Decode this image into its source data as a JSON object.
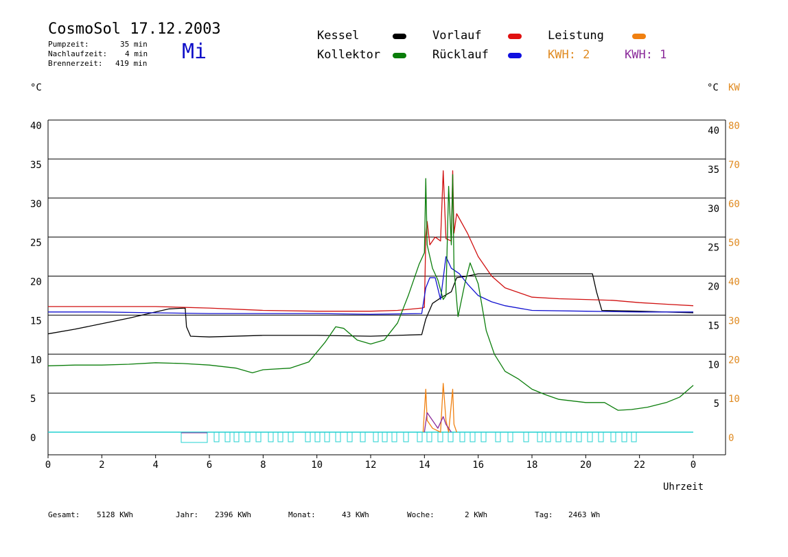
{
  "header": {
    "title": "CosmoSol 17.12.2003",
    "day": "Mi",
    "stats": [
      {
        "label": "Pumpzeit:",
        "value": "35 min"
      },
      {
        "label": "Nachlaufzeit:",
        "value": "4 min"
      },
      {
        "label": "Brennerzeit:",
        "value": "419 min"
      }
    ]
  },
  "legend": [
    {
      "label": "Kessel",
      "color": "#000000"
    },
    {
      "label": "Kollektor",
      "color": "#0a7d0a"
    },
    {
      "label": "Vorlauf",
      "color": "#e01010"
    },
    {
      "label": "Rücklauf",
      "color": "#1010e0"
    },
    {
      "label": "Leistung",
      "color": "#f08010"
    }
  ],
  "kwh": [
    {
      "text": "KWH: 2",
      "color": "#e08a20"
    },
    {
      "text": "KWH: 1",
      "color": "#8a2a9a"
    }
  ],
  "axes": {
    "left_unit": "°C",
    "right_unit": "°C",
    "right_unit2": "KW",
    "left_ticks": [
      "0",
      "5",
      "10",
      "15",
      "20",
      "25",
      "30",
      "35",
      "40"
    ],
    "right_ticks": [
      "5",
      "10",
      "15",
      "20",
      "25",
      "30",
      "35",
      "40"
    ],
    "kw_ticks": [
      "0",
      "10",
      "20",
      "30",
      "40",
      "50",
      "60",
      "70",
      "80"
    ],
    "x_ticks": [
      "0",
      "2",
      "4",
      "6",
      "8",
      "10",
      "12",
      "14",
      "16",
      "18",
      "20",
      "22",
      "0"
    ],
    "xlabel": "Uhrzeit"
  },
  "footer": [
    {
      "label": "Gesamt:",
      "value": "5128 KWh"
    },
    {
      "label": "Jahr:",
      "value": "2396 KWh"
    },
    {
      "label": "Monat:",
      "value": "43 KWh"
    },
    {
      "label": "Woche:",
      "value": "2 KWh"
    },
    {
      "label": "Tag:",
      "value": "2463 Wh"
    }
  ],
  "chart_data": {
    "type": "line",
    "xlabel": "Uhrzeit",
    "ylabel": "°C",
    "y2label": "KW",
    "xlim": [
      0,
      24
    ],
    "ylim": [
      0,
      40
    ],
    "y2lim": [
      0,
      80
    ],
    "grid": true,
    "series": [
      {
        "name": "Kessel",
        "color": "#000000",
        "points": [
          [
            0,
            12.6
          ],
          [
            1,
            13.2
          ],
          [
            2,
            13.9
          ],
          [
            3,
            14.6
          ],
          [
            4,
            15.4
          ],
          [
            4.5,
            15.8
          ],
          [
            5.1,
            15.9
          ],
          [
            5.15,
            13.5
          ],
          [
            5.3,
            12.3
          ],
          [
            6,
            12.2
          ],
          [
            8,
            12.4
          ],
          [
            10,
            12.4
          ],
          [
            12,
            12.3
          ],
          [
            13,
            12.4
          ],
          [
            13.9,
            12.5
          ],
          [
            14.05,
            14.5
          ],
          [
            14.3,
            16.5
          ],
          [
            14.6,
            17.2
          ],
          [
            14.8,
            17.6
          ],
          [
            15,
            18
          ],
          [
            15.2,
            19.8
          ],
          [
            15.6,
            20
          ],
          [
            16,
            20.3
          ],
          [
            18,
            20.3
          ],
          [
            20,
            20.3
          ],
          [
            20.25,
            20.3
          ],
          [
            20.4,
            18
          ],
          [
            20.6,
            15.6
          ],
          [
            22,
            15.5
          ],
          [
            24,
            15.3
          ]
        ]
      },
      {
        "name": "Vorlauf",
        "color": "#d01010",
        "points": [
          [
            0,
            16.1
          ],
          [
            2,
            16.1
          ],
          [
            4,
            16.1
          ],
          [
            6,
            15.9
          ],
          [
            8,
            15.6
          ],
          [
            10,
            15.5
          ],
          [
            12,
            15.5
          ],
          [
            13,
            15.6
          ],
          [
            13.9,
            15.9
          ],
          [
            14,
            16
          ],
          [
            14.05,
            25
          ],
          [
            14.1,
            27
          ],
          [
            14.2,
            24
          ],
          [
            14.4,
            25
          ],
          [
            14.6,
            24.5
          ],
          [
            14.7,
            33.5
          ],
          [
            14.8,
            24.8
          ],
          [
            15,
            24.5
          ],
          [
            15.05,
            33.5
          ],
          [
            15.1,
            25.5
          ],
          [
            15.2,
            28
          ],
          [
            15.6,
            25.5
          ],
          [
            16,
            22.5
          ],
          [
            16.5,
            20
          ],
          [
            17,
            18.5
          ],
          [
            18,
            17.3
          ],
          [
            19,
            17.1
          ],
          [
            20,
            17
          ],
          [
            21,
            16.9
          ],
          [
            22,
            16.6
          ],
          [
            23,
            16.4
          ],
          [
            24,
            16.2
          ]
        ]
      },
      {
        "name": "Rücklauf",
        "color": "#1010d0",
        "points": [
          [
            0,
            15.4
          ],
          [
            2,
            15.4
          ],
          [
            4,
            15.3
          ],
          [
            6,
            15.2
          ],
          [
            8,
            15.2
          ],
          [
            10,
            15.2
          ],
          [
            12,
            15.1
          ],
          [
            13.9,
            15.2
          ],
          [
            14.05,
            18.5
          ],
          [
            14.2,
            19.8
          ],
          [
            14.4,
            19.8
          ],
          [
            14.6,
            17
          ],
          [
            14.8,
            22.5
          ],
          [
            15,
            21
          ],
          [
            15.3,
            20.3
          ],
          [
            15.6,
            19
          ],
          [
            16,
            17.5
          ],
          [
            16.5,
            16.7
          ],
          [
            17,
            16.2
          ],
          [
            18,
            15.6
          ],
          [
            20,
            15.5
          ],
          [
            22,
            15.4
          ],
          [
            24,
            15.4
          ]
        ]
      },
      {
        "name": "Kollektor",
        "color": "#0a7d0a",
        "points": [
          [
            0,
            8.5
          ],
          [
            1,
            8.6
          ],
          [
            2,
            8.6
          ],
          [
            3,
            8.7
          ],
          [
            4,
            8.9
          ],
          [
            5,
            8.8
          ],
          [
            6,
            8.6
          ],
          [
            7,
            8.2
          ],
          [
            7.6,
            7.6
          ],
          [
            8,
            8
          ],
          [
            9,
            8.2
          ],
          [
            9.7,
            9
          ],
          [
            10.3,
            11.5
          ],
          [
            10.7,
            13.5
          ],
          [
            11,
            13.3
          ],
          [
            11.5,
            11.8
          ],
          [
            12,
            11.3
          ],
          [
            12.5,
            11.8
          ],
          [
            13,
            14
          ],
          [
            13.4,
            17.5
          ],
          [
            13.8,
            21.5
          ],
          [
            14,
            23
          ],
          [
            14.05,
            32.5
          ],
          [
            14.1,
            24
          ],
          [
            14.3,
            21
          ],
          [
            14.5,
            19.5
          ],
          [
            14.7,
            17
          ],
          [
            14.8,
            17.5
          ],
          [
            14.9,
            31.5
          ],
          [
            15,
            24
          ],
          [
            15.05,
            33
          ],
          [
            15.1,
            21
          ],
          [
            15.25,
            14.8
          ],
          [
            15.5,
            19
          ],
          [
            15.7,
            21.7
          ],
          [
            16,
            19
          ],
          [
            16.3,
            13
          ],
          [
            16.6,
            10
          ],
          [
            17,
            7.8
          ],
          [
            17.5,
            6.8
          ],
          [
            18,
            5.5
          ],
          [
            18.5,
            4.8
          ],
          [
            19,
            4.2
          ],
          [
            20,
            3.8
          ],
          [
            20.7,
            3.8
          ],
          [
            21.2,
            2.8
          ],
          [
            21.7,
            2.9
          ],
          [
            22.3,
            3.2
          ],
          [
            23,
            3.8
          ],
          [
            23.5,
            4.5
          ],
          [
            24,
            6
          ]
        ]
      },
      {
        "name": "Leistung",
        "color": "#f08010",
        "axis": "KW",
        "points": [
          [
            13.95,
            0
          ],
          [
            14.05,
            11
          ],
          [
            14.1,
            3
          ],
          [
            14.3,
            1
          ],
          [
            14.6,
            0
          ],
          [
            14.7,
            12.5
          ],
          [
            14.8,
            3
          ],
          [
            14.9,
            0
          ],
          [
            15.05,
            11
          ],
          [
            15.1,
            2
          ],
          [
            15.2,
            0
          ]
        ]
      },
      {
        "name": "KWH: 1",
        "color": "#8a2a9a",
        "axis": "KW",
        "points": [
          [
            14,
            0
          ],
          [
            14.1,
            5
          ],
          [
            14.3,
            3
          ],
          [
            14.5,
            1
          ],
          [
            14.7,
            4
          ],
          [
            14.8,
            2
          ],
          [
            15,
            0
          ]
        ]
      }
    ]
  }
}
